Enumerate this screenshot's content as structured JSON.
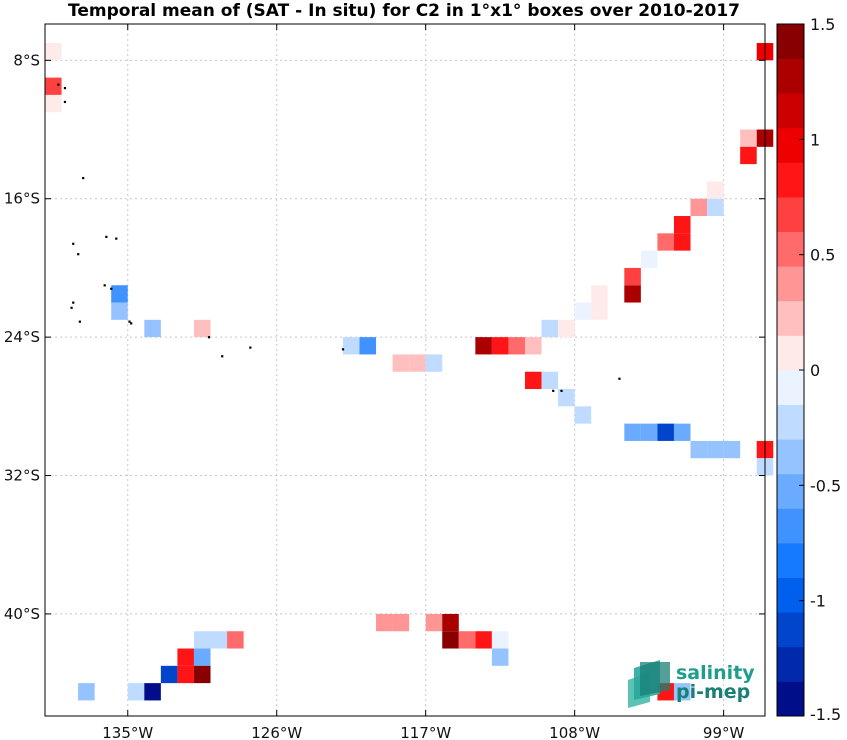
{
  "chart_data": {
    "type": "heatmap",
    "title": "Temporal mean of (SAT - In situ) for C2 in 1°x1° boxes over 2010-2017",
    "xlim": [
      -140,
      -96.5
    ],
    "ylim": [
      -45.9,
      -5.9
    ],
    "x_ticks": [
      -135,
      -126,
      -117,
      -108,
      -99
    ],
    "x_tick_labels": [
      "135°W",
      "126°W",
      "117°W",
      "108°W",
      "99°W"
    ],
    "y_ticks": [
      -8,
      -16,
      -24,
      -32,
      -40
    ],
    "y_tick_labels": [
      "8°S",
      "16°S",
      "24°S",
      "32°S",
      "40°S"
    ],
    "grid": true,
    "colorbar": {
      "range": [
        -1.5,
        1.5
      ],
      "ticks": [
        -1.5,
        -1,
        -0.5,
        0,
        0.5,
        1,
        1.5
      ],
      "tick_labels": [
        "-1.5",
        "-1",
        "-0.5",
        "0",
        "0.5",
        "1",
        "1.5"
      ],
      "placement": "right",
      "negative_end": "#00007a",
      "zero": "#ffffff",
      "positive_end": "#7a0000"
    },
    "cells": [
      {
        "lon": -139.5,
        "lat": -7.5,
        "v": 0.15
      },
      {
        "lon": -139.5,
        "lat": -9.5,
        "v": 0.7
      },
      {
        "lon": -139.5,
        "lat": -10.5,
        "v": 0.15
      },
      {
        "lon": -135.5,
        "lat": -21.5,
        "v": -0.75
      },
      {
        "lon": -135.5,
        "lat": -22.5,
        "v": -0.45
      },
      {
        "lon": -133.5,
        "lat": -23.5,
        "v": -0.45
      },
      {
        "lon": -130.5,
        "lat": -23.5,
        "v": 0.25
      },
      {
        "lon": -121.5,
        "lat": -24.5,
        "v": -0.25
      },
      {
        "lon": -120.5,
        "lat": -24.5,
        "v": -0.75
      },
      {
        "lon": -118.5,
        "lat": -25.5,
        "v": 0.25
      },
      {
        "lon": -117.5,
        "lat": -25.5,
        "v": 0.25
      },
      {
        "lon": -116.5,
        "lat": -25.5,
        "v": -0.25
      },
      {
        "lon": -113.5,
        "lat": -24.5,
        "v": 1.3
      },
      {
        "lon": -112.5,
        "lat": -24.5,
        "v": 0.75
      },
      {
        "lon": -111.5,
        "lat": -24.5,
        "v": 0.55
      },
      {
        "lon": -110.5,
        "lat": -24.5,
        "v": 0.2
      },
      {
        "lon": -110.5,
        "lat": -26.5,
        "v": 0.75
      },
      {
        "lon": -109.5,
        "lat": -26.5,
        "v": -0.25
      },
      {
        "lon": -109.5,
        "lat": -23.5,
        "v": -0.25
      },
      {
        "lon": -108.5,
        "lat": -23.5,
        "v": 0.15
      },
      {
        "lon": -108.5,
        "lat": -27.5,
        "v": -0.2
      },
      {
        "lon": -107.5,
        "lat": -22.5,
        "v": -0.1
      },
      {
        "lon": -107.5,
        "lat": -28.5,
        "v": -0.25
      },
      {
        "lon": -106.5,
        "lat": -22.5,
        "v": 0.15
      },
      {
        "lon": -106.5,
        "lat": -21.5,
        "v": 0.15
      },
      {
        "lon": -104.5,
        "lat": -21.5,
        "v": 1.3
      },
      {
        "lon": -104.5,
        "lat": -20.5,
        "v": 0.7
      },
      {
        "lon": -103.5,
        "lat": -19.5,
        "v": -0.1
      },
      {
        "lon": -102.5,
        "lat": -18.5,
        "v": 0.55
      },
      {
        "lon": -101.5,
        "lat": -18.5,
        "v": 0.75
      },
      {
        "lon": -101.5,
        "lat": -17.5,
        "v": 0.75
      },
      {
        "lon": -100.5,
        "lat": -16.5,
        "v": 0.3
      },
      {
        "lon": -99.5,
        "lat": -16.5,
        "v": -0.2
      },
      {
        "lon": -99.5,
        "lat": -15.5,
        "v": 0.1
      },
      {
        "lon": -104.5,
        "lat": -29.5,
        "v": -0.5
      },
      {
        "lon": -103.5,
        "lat": -29.5,
        "v": -0.6
      },
      {
        "lon": -102.5,
        "lat": -29.5,
        "v": -1.2
      },
      {
        "lon": -101.5,
        "lat": -29.5,
        "v": -0.6
      },
      {
        "lon": -100.5,
        "lat": -30.5,
        "v": -0.4
      },
      {
        "lon": -99.5,
        "lat": -30.5,
        "v": -0.4
      },
      {
        "lon": -98.5,
        "lat": -30.5,
        "v": -0.4
      },
      {
        "lon": -97.5,
        "lat": -12.5,
        "v": 0.2
      },
      {
        "lon": -97.5,
        "lat": -13.5,
        "v": 0.8
      },
      {
        "lon": -96.5,
        "lat": -7.5,
        "v": 1.0
      },
      {
        "lon": -96.5,
        "lat": -12.5,
        "v": 1.3
      },
      {
        "lon": -96.5,
        "lat": -30.5,
        "v": 0.75
      },
      {
        "lon": -96.5,
        "lat": -31.5,
        "v": -0.2
      },
      {
        "lon": -119.5,
        "lat": -40.5,
        "v": 0.3
      },
      {
        "lon": -118.5,
        "lat": -40.5,
        "v": 0.3
      },
      {
        "lon": -116.5,
        "lat": -40.5,
        "v": 0.4
      },
      {
        "lon": -115.5,
        "lat": -40.5,
        "v": 1.2
      },
      {
        "lon": -115.5,
        "lat": -41.5,
        "v": 1.4
      },
      {
        "lon": -114.5,
        "lat": -41.5,
        "v": 0.55
      },
      {
        "lon": -113.5,
        "lat": -41.5,
        "v": 0.85
      },
      {
        "lon": -112.5,
        "lat": -41.5,
        "v": -0.15
      },
      {
        "lon": -112.5,
        "lat": -42.5,
        "v": -0.3
      },
      {
        "lon": -130.5,
        "lat": -41.5,
        "v": -0.25
      },
      {
        "lon": -129.5,
        "lat": -41.5,
        "v": -0.25
      },
      {
        "lon": -128.5,
        "lat": -41.5,
        "v": 0.55
      },
      {
        "lon": -131.5,
        "lat": -42.5,
        "v": 0.85
      },
      {
        "lon": -130.5,
        "lat": -42.5,
        "v": -0.55
      },
      {
        "lon": -132.5,
        "lat": -43.5,
        "v": -1.2
      },
      {
        "lon": -131.5,
        "lat": -43.5,
        "v": 0.9
      },
      {
        "lon": -130.5,
        "lat": -43.5,
        "v": 1.35
      },
      {
        "lon": -137.5,
        "lat": -44.5,
        "v": -0.4
      },
      {
        "lon": -134.5,
        "lat": -44.5,
        "v": -0.2
      },
      {
        "lon": -133.5,
        "lat": -44.5,
        "v": -1.45
      },
      {
        "lon": -101.5,
        "lat": -44.5,
        "v": -0.3
      },
      {
        "lon": -102.5,
        "lat": -44.5,
        "v": 0.8
      }
    ]
  },
  "logo": {
    "line1": "salinity",
    "line2": "pi-mep",
    "colors": [
      "#2aa79b",
      "#1b7f75",
      "#3fb9a7",
      "#2d8f83"
    ]
  }
}
